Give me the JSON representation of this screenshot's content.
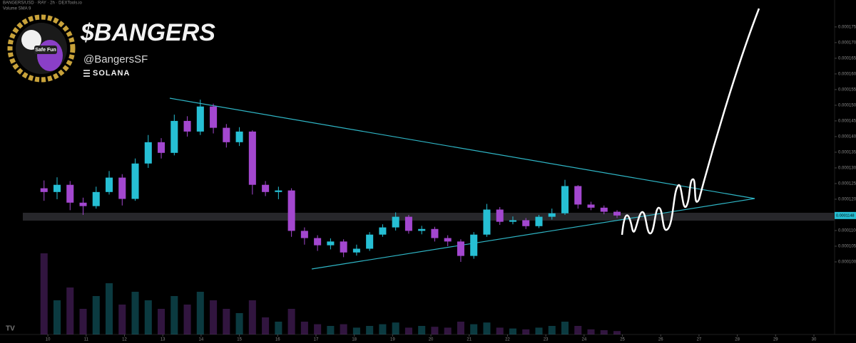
{
  "header": {
    "symbol_line": "BANGERS/USD · RAY · 2h · DEXTools.io",
    "indicator": "Volume SMA 9"
  },
  "branding": {
    "logo_text": "Safe Fun",
    "title": "$BANGERS",
    "handle": "@BangersSF",
    "network": "SOLANA"
  },
  "chart_data": {
    "type": "candlestick",
    "up_color": "#26bfd4",
    "down_color": "#a347cf",
    "x": [
      9.9,
      10.24,
      10.58,
      10.92,
      11.26,
      11.6,
      11.94,
      12.28,
      12.62,
      12.96,
      13.3,
      13.64,
      13.98,
      14.32,
      14.66,
      15.0,
      15.34,
      15.68,
      16.02,
      16.36,
      16.7,
      17.04,
      17.38,
      17.72,
      18.06,
      18.4,
      18.74,
      19.08,
      19.42,
      19.76,
      20.1,
      20.44,
      20.78,
      21.12,
      21.46,
      21.8,
      22.14,
      22.48,
      22.82,
      23.16,
      23.5,
      23.84,
      24.18,
      24.52,
      24.86
    ],
    "open": [
      0.0001235,
      0.0001223,
      0.0001246,
      0.0001189,
      0.0001178,
      0.0001223,
      0.0001269,
      0.0001201,
      0.0001314,
      0.0001382,
      0.0001348,
      0.000145,
      0.0001416,
      0.0001496,
      0.0001428,
      0.0001382,
      0.0001416,
      0.0001246,
      0.0001223,
      0.0001228,
      0.0001099,
      0.0001076,
      0.0001053,
      0.0001065,
      0.000103,
      0.0001042,
      0.0001087,
      0.000111,
      0.0001144,
      0.0001099,
      0.0001105,
      0.0001076,
      0.0001065,
      0.0001019,
      0.0001087,
      0.0001167,
      0.0001128,
      0.0001133,
      0.0001114,
      0.0001144,
      0.0001155,
      0.0001242,
      0.0001183,
      0.0001173,
      0.000116
    ],
    "high": [
      0.000126,
      0.000127,
      0.0001258,
      0.0001205,
      0.000124,
      0.000129,
      0.000128,
      0.000133,
      0.0001405,
      0.0001395,
      0.000147,
      0.0001465,
      0.0001518,
      0.0001505,
      0.000144,
      0.000143,
      0.000142,
      0.0001258,
      0.000124,
      0.0001235,
      0.000111,
      0.0001085,
      0.0001075,
      0.0001072,
      0.0001055,
      0.0001095,
      0.000112,
      0.0001158,
      0.000115,
      0.0001115,
      0.0001112,
      0.0001085,
      0.0001072,
      0.0001095,
      0.0001185,
      0.0001175,
      0.0001145,
      0.000114,
      0.000115,
      0.000117,
      0.0001262,
      0.0001245,
      0.0001192,
      0.000118,
      0.0001165
    ],
    "low": [
      0.0001195,
      0.00012,
      0.0001165,
      0.000115,
      0.000117,
      0.0001215,
      0.000118,
      0.0001195,
      0.00013,
      0.000133,
      0.000134,
      0.00014,
      0.0001405,
      0.000141,
      0.0001365,
      0.000137,
      0.0001215,
      0.000121,
      0.00012,
      0.000108,
      0.0001055,
      0.0001035,
      0.000104,
      0.0001015,
      0.000102,
      0.0001035,
      0.000108,
      0.00011,
      0.000109,
      0.0001088,
      0.0001065,
      0.000105,
      0.0001,
      0.000101,
      0.000108,
      0.0001118,
      0.000112,
      0.0001105,
      0.0001108,
      0.0001135,
      0.000115,
      0.000117,
      0.0001165,
      0.0001152,
      0.000114
    ],
    "close": [
      0.0001223,
      0.0001246,
      0.0001189,
      0.0001178,
      0.0001223,
      0.0001269,
      0.0001201,
      0.0001314,
      0.0001382,
      0.0001348,
      0.000145,
      0.0001416,
      0.0001496,
      0.0001428,
      0.0001382,
      0.0001416,
      0.0001246,
      0.0001223,
      0.0001228,
      0.0001099,
      0.0001076,
      0.0001053,
      0.0001065,
      0.000103,
      0.0001042,
      0.0001087,
      0.000111,
      0.0001144,
      0.0001099,
      0.0001105,
      0.0001076,
      0.0001065,
      0.0001019,
      0.0001087,
      0.0001167,
      0.0001128,
      0.0001133,
      0.0001114,
      0.0001144,
      0.0001155,
      0.0001242,
      0.0001183,
      0.0001173,
      0.000116,
      0.0001148
    ],
    "volume": [
      95,
      40,
      55,
      30,
      45,
      60,
      35,
      50,
      40,
      30,
      45,
      35,
      50,
      40,
      30,
      25,
      40,
      20,
      15,
      30,
      15,
      12,
      10,
      12,
      8,
      10,
      12,
      14,
      8,
      10,
      9,
      8,
      15,
      12,
      14,
      8,
      7,
      6,
      8,
      10,
      15,
      10,
      6,
      5,
      4
    ],
    "vlim": [
      0,
      100
    ],
    "xlim": [
      8.75,
      30.54
    ],
    "xticks": [
      10,
      11,
      12,
      13,
      14,
      15,
      16,
      17,
      18,
      19,
      20,
      21,
      22,
      23,
      24,
      25,
      26,
      27,
      28,
      29,
      30
    ],
    "ylim": [
      9.5e-05,
      0.0001836
    ],
    "yticks": [
      {
        "value": 0.0001,
        "label": "0.0001000"
      },
      {
        "value": 0.000105,
        "label": "0.0001050"
      },
      {
        "value": 0.00011,
        "label": "0.0001100"
      },
      {
        "value": 0.000115,
        "label": "0.0001150"
      },
      {
        "value": 0.00012,
        "label": "0.0001200"
      },
      {
        "value": 0.000125,
        "label": "0.0001250"
      },
      {
        "value": 0.00013,
        "label": "0.0001300"
      },
      {
        "value": 0.000135,
        "label": "0.0001350"
      },
      {
        "value": 0.00014,
        "label": "0.0001400"
      },
      {
        "value": 0.000145,
        "label": "0.0001450"
      },
      {
        "value": 0.00015,
        "label": "0.0001500"
      },
      {
        "value": 0.000155,
        "label": "0.0001550"
      },
      {
        "value": 0.00016,
        "label": "0.0001600"
      },
      {
        "value": 0.000165,
        "label": "0.0001650"
      },
      {
        "value": 0.00017,
        "label": "0.0001700"
      },
      {
        "value": 0.000175,
        "label": "0.0001750"
      }
    ],
    "grid": false
  }
}
